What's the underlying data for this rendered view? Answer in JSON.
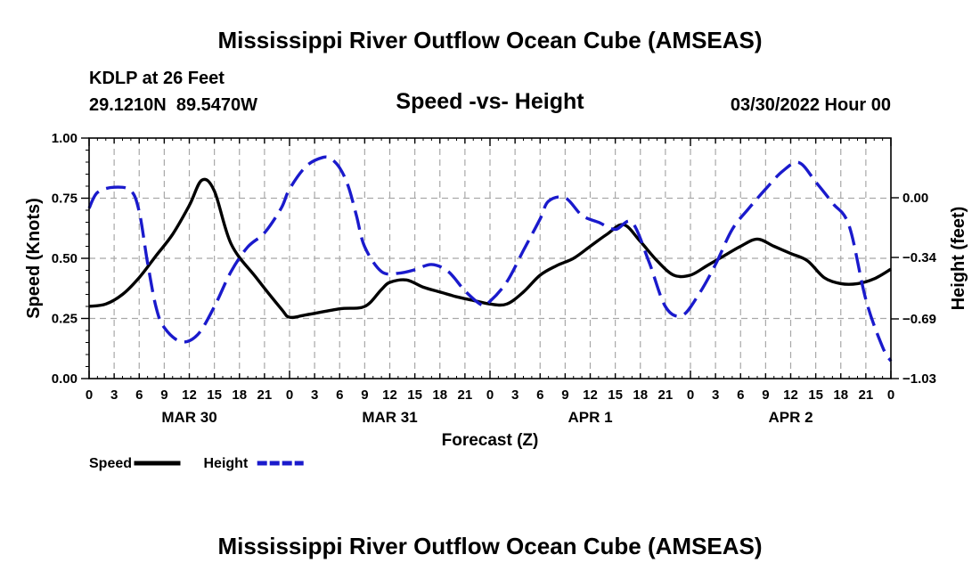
{
  "header": {
    "title": "Mississippi River Outflow Ocean Cube (AMSEAS)",
    "station": "KDLP at 26 Feet",
    "coords": "29.1210N  89.5470W",
    "subtitle": "Speed -vs- Height",
    "datetime": "03/30/2022 Hour 00"
  },
  "footer": {
    "title": "Mississippi River Outflow Ocean Cube (AMSEAS)"
  },
  "chart_data": {
    "type": "line",
    "title": "Speed -vs- Height",
    "xlabel": "Forecast (Z)",
    "ylabel": "Speed (Knots)",
    "y2label": "Height (feet)",
    "xlim": [
      0,
      96
    ],
    "ylim": [
      0,
      1
    ],
    "y2lim": [
      -1.03,
      0.34
    ],
    "grid": true,
    "legend_position": "bottom-left",
    "x_tick_labels": [
      "0",
      "3",
      "6",
      "9",
      "12",
      "15",
      "18",
      "21",
      "0",
      "3",
      "6",
      "9",
      "12",
      "15",
      "18",
      "21",
      "0",
      "3",
      "6",
      "9",
      "12",
      "15",
      "18",
      "21",
      "0",
      "3",
      "6",
      "9",
      "12",
      "15",
      "18",
      "21",
      "0"
    ],
    "y_ticks": [
      0.0,
      0.25,
      0.5,
      0.75,
      1.0
    ],
    "y_tick_labels": [
      "0.00",
      "0.25",
      "0.50",
      "0.75",
      "1.00"
    ],
    "y2_ticks": [
      -1.03,
      -0.69,
      -0.34,
      0.0
    ],
    "y2_tick_labels": [
      "−1.03",
      "−0.69",
      "−0.34",
      "0.00"
    ],
    "date_labels": [
      {
        "label": "MAR 30",
        "x": 12
      },
      {
        "label": "MAR 31",
        "x": 36
      },
      {
        "label": "APR 1",
        "x": 60
      },
      {
        "label": "APR 2",
        "x": 84
      }
    ],
    "series": [
      {
        "name": "Speed",
        "axis": "left",
        "color": "#000000",
        "style": "solid",
        "x": [
          0,
          2,
          4,
          6,
          8,
          10,
          12,
          13.5,
          15,
          17,
          20,
          23,
          24,
          26,
          30,
          33,
          35,
          36,
          38,
          40,
          42,
          44,
          46,
          48,
          50,
          52,
          54,
          56,
          58,
          60,
          62,
          64,
          66,
          68,
          70,
          72,
          74,
          76,
          78,
          80,
          82,
          84,
          86,
          88,
          90,
          92,
          94,
          96
        ],
        "y": [
          0.3,
          0.31,
          0.35,
          0.42,
          0.51,
          0.6,
          0.72,
          0.825,
          0.78,
          0.56,
          0.42,
          0.29,
          0.255,
          0.265,
          0.29,
          0.3,
          0.37,
          0.4,
          0.41,
          0.38,
          0.36,
          0.34,
          0.325,
          0.31,
          0.31,
          0.36,
          0.43,
          0.47,
          0.5,
          0.55,
          0.6,
          0.64,
          0.57,
          0.49,
          0.43,
          0.43,
          0.47,
          0.51,
          0.55,
          0.58,
          0.55,
          0.52,
          0.49,
          0.42,
          0.395,
          0.395,
          0.415,
          0.455
        ]
      },
      {
        "name": "Height",
        "axis": "right",
        "color": "#1a1acc",
        "style": "dashed",
        "x": [
          0,
          1,
          3,
          5,
          6,
          7,
          8,
          9,
          11,
          13,
          15,
          17,
          19,
          21,
          23,
          24,
          26,
          28,
          29,
          30,
          31,
          32,
          33,
          35,
          37,
          39,
          41,
          43,
          45,
          47,
          48,
          50,
          52,
          54,
          55,
          57,
          59,
          61,
          63,
          65,
          67,
          69,
          71,
          73,
          75,
          77,
          79,
          81,
          83,
          85,
          87,
          89,
          91,
          93,
          95,
          96
        ],
        "y": [
          -0.06,
          0.03,
          0.06,
          0.04,
          -0.08,
          -0.37,
          -0.62,
          -0.74,
          -0.82,
          -0.78,
          -0.62,
          -0.42,
          -0.28,
          -0.2,
          -0.06,
          0.05,
          0.18,
          0.23,
          0.22,
          0.17,
          0.07,
          -0.1,
          -0.28,
          -0.42,
          -0.43,
          -0.41,
          -0.38,
          -0.42,
          -0.53,
          -0.61,
          -0.59,
          -0.48,
          -0.3,
          -0.12,
          -0.02,
          0.0,
          -0.1,
          -0.14,
          -0.18,
          -0.14,
          -0.36,
          -0.62,
          -0.67,
          -0.55,
          -0.38,
          -0.18,
          -0.06,
          0.05,
          0.15,
          0.2,
          0.09,
          -0.03,
          -0.16,
          -0.58,
          -0.85,
          -0.93
        ]
      }
    ]
  }
}
